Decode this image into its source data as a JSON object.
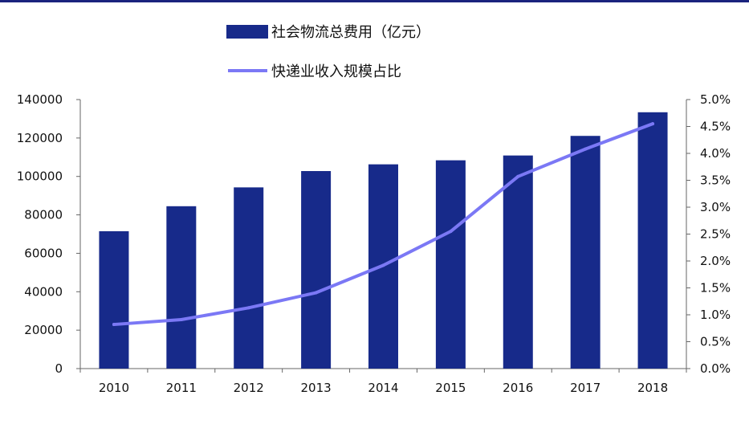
{
  "chart_data": {
    "type": "bar",
    "categories": [
      "2010",
      "2011",
      "2012",
      "2013",
      "2014",
      "2015",
      "2016",
      "2017",
      "2018"
    ],
    "series": [
      {
        "name": "社会物流总费用（亿元）",
        "type": "bar",
        "axis": "left",
        "color": "#172a8a",
        "values": [
          71500,
          84500,
          94300,
          102800,
          106300,
          108400,
          110900,
          121100,
          133400
        ]
      },
      {
        "name": "快递业收入规模占比",
        "type": "line",
        "axis": "right",
        "color": "#7b78f5",
        "values": [
          0.82,
          0.91,
          1.13,
          1.41,
          1.92,
          2.55,
          3.57,
          4.08,
          4.55
        ]
      }
    ],
    "left_axis": {
      "ylim": [
        0,
        140000
      ],
      "ticks": [
        "0",
        "20000",
        "40000",
        "60000",
        "80000",
        "100000",
        "120000",
        "140000"
      ]
    },
    "right_axis": {
      "ylim": [
        0,
        5.0
      ],
      "ticks": [
        "0.0%",
        "0.5%",
        "1.0%",
        "1.5%",
        "2.0%",
        "2.5%",
        "3.0%",
        "3.5%",
        "4.0%",
        "4.5%",
        "5.0%"
      ]
    },
    "legend_placement": "top-center",
    "grid": false
  }
}
